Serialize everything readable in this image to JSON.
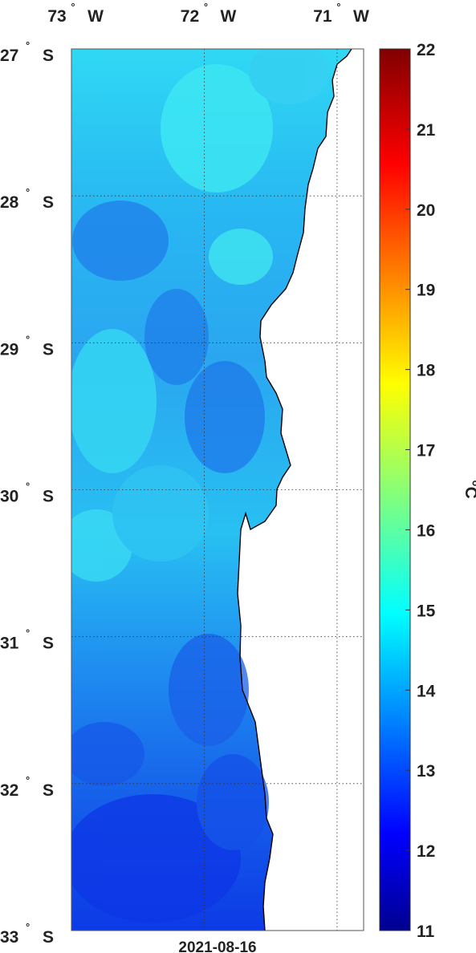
{
  "map": {
    "date_label": "2021-08-16",
    "unit_label": "°C",
    "lon_ticks": [
      {
        "deg": "73",
        "hem": "W"
      },
      {
        "deg": "72",
        "hem": "W"
      },
      {
        "deg": "71",
        "hem": "W"
      }
    ],
    "lat_ticks": [
      {
        "deg": "27",
        "hem": "S"
      },
      {
        "deg": "28",
        "hem": "S"
      },
      {
        "deg": "29",
        "hem": "S"
      },
      {
        "deg": "30",
        "hem": "S"
      },
      {
        "deg": "31",
        "hem": "S"
      },
      {
        "deg": "32",
        "hem": "S"
      },
      {
        "deg": "33",
        "hem": "S"
      }
    ],
    "lon_range": [
      73.0,
      70.8
    ],
    "lat_range": [
      27.0,
      33.0
    ],
    "colorbar": {
      "min": 11,
      "max": 22,
      "tick_labels": [
        "22",
        "21",
        "20",
        "19",
        "18",
        "17",
        "16",
        "15",
        "14",
        "13",
        "12",
        "11"
      ],
      "colormap": "jet"
    },
    "colors": {
      "land": "#ffffff",
      "coast": "#000000",
      "grid": "#333333",
      "cold_deep": "#0a2ee6",
      "mid": "#1a7ef0",
      "warm_band": "#22c8f5",
      "warmest": "#3fe9f3"
    }
  }
}
